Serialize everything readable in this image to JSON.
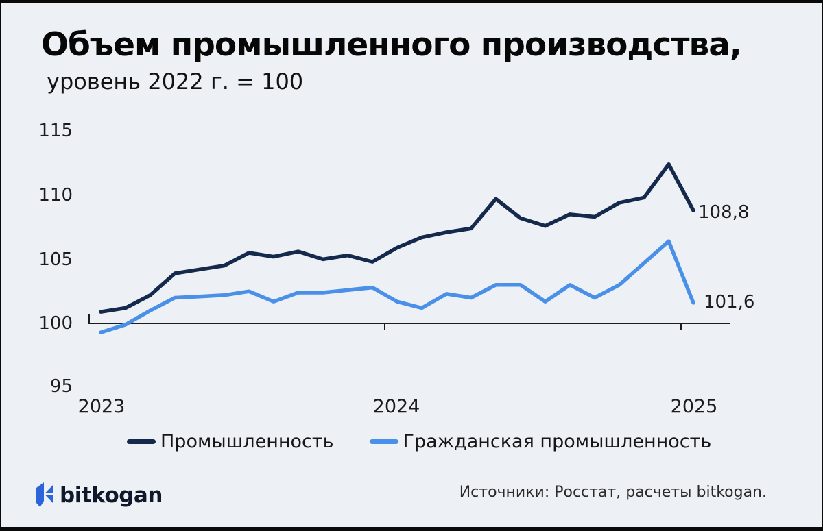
{
  "header": {
    "title": "Объем промышленного производства,",
    "subtitle": "уровень 2022 г. = 100"
  },
  "chart_data": {
    "type": "line",
    "x": [
      "2023-01",
      "2023-02",
      "2023-03",
      "2023-04",
      "2023-05",
      "2023-06",
      "2023-07",
      "2023-08",
      "2023-09",
      "2023-10",
      "2023-11",
      "2023-12",
      "2024-01",
      "2024-02",
      "2024-03",
      "2024-04",
      "2024-05",
      "2024-06",
      "2024-07",
      "2024-08",
      "2024-09",
      "2024-10",
      "2024-11",
      "2024-12",
      "2025-01"
    ],
    "series": [
      {
        "name": "Промышленность",
        "color": "#14294b",
        "values": [
          100.9,
          101.2,
          102.2,
          103.9,
          104.2,
          104.5,
          105.5,
          105.2,
          105.6,
          105.0,
          105.3,
          104.8,
          105.9,
          106.7,
          107.1,
          107.4,
          109.7,
          108.2,
          107.6,
          108.5,
          108.3,
          109.4,
          109.8,
          112.4,
          108.8
        ],
        "end_label": "108,8"
      },
      {
        "name": "Гражданская промышленность",
        "color": "#4a90e8",
        "values": [
          99.3,
          99.9,
          101.0,
          102.0,
          102.1,
          102.2,
          102.5,
          101.7,
          102.4,
          102.4,
          102.6,
          102.8,
          101.7,
          101.2,
          102.3,
          102.0,
          103.0,
          103.0,
          101.7,
          103.0,
          102.0,
          103.0,
          104.7,
          106.4,
          101.6
        ],
        "end_label": "101,6"
      }
    ],
    "yticks": [
      "115",
      "110",
      "105",
      "100",
      "95"
    ],
    "xticks": [
      "2023",
      "2024",
      "2025"
    ],
    "ylim": [
      95,
      115
    ],
    "x_axis_at_value": 100,
    "grid": false,
    "legend_position": "bottom"
  },
  "footer": {
    "logo_text": "bitkogan",
    "source": "Источники: Росстат, расчеты bitkogan."
  },
  "colors": {
    "background": "#edf1f5",
    "industry_line": "#14294b",
    "civilian_line": "#4a90e8",
    "logo_blue": "#2b65d9",
    "axis": "#1c1c1c"
  }
}
